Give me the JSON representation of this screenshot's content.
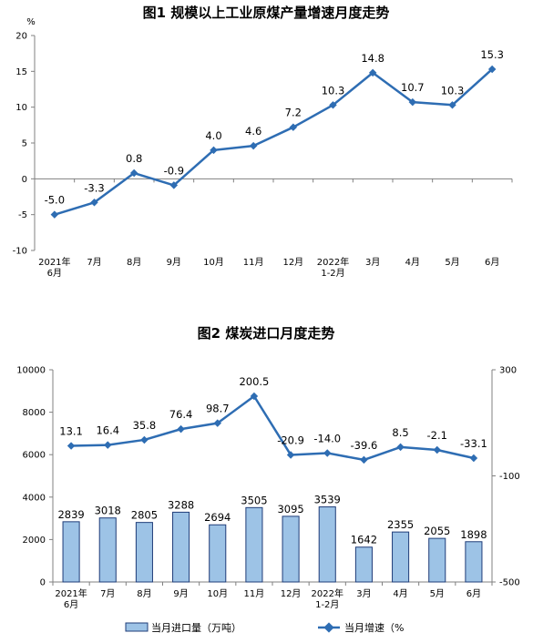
{
  "chart_data": [
    {
      "type": "line",
      "title": "图1  规模以上工业原煤产量增速月度走势",
      "ylabel": "%",
      "ylim": [
        -10,
        20
      ],
      "yticks": [
        "-10",
        "-5",
        "0",
        "5",
        "10",
        "15",
        "20"
      ],
      "categories": [
        "2021年\n6月",
        "7月",
        "8月",
        "9月",
        "10月",
        "11月",
        "12月",
        "2022年\n1-2月",
        "3月",
        "4月",
        "5月",
        "6月"
      ],
      "series": [
        {
          "name": "",
          "values": [
            -5.0,
            -3.3,
            0.8,
            -0.9,
            4.0,
            4.6,
            7.2,
            10.3,
            14.8,
            10.7,
            10.3,
            15.3
          ],
          "labels": [
            "-5.0",
            "-3.3",
            "0.8",
            "-0.9",
            "4.0",
            "4.6",
            "7.2",
            "10.3",
            "14.8",
            "10.7",
            "10.3",
            "15.3"
          ]
        }
      ],
      "grid": false,
      "line_color": "#2e6db3"
    },
    {
      "type": "bar",
      "title": "图2  煤炭进口月度走势",
      "ylim": [
        0,
        10000
      ],
      "yticks": [
        "0",
        "2000",
        "4000",
        "6000",
        "8000",
        "10000"
      ],
      "y2lim": [
        -500,
        300
      ],
      "y2ticks": [
        "-500",
        "-100",
        "300"
      ],
      "categories": [
        "2021年\n6月",
        "7月",
        "8月",
        "9月",
        "10月",
        "11月",
        "12月",
        "2022年\n1-2月",
        "3月",
        "4月",
        "5月",
        "6月"
      ],
      "series": [
        {
          "name": "当月进口量（万吨）",
          "type": "bar",
          "axis": "left",
          "values": [
            2839,
            3018,
            2805,
            3288,
            2694,
            3505,
            3095,
            3539,
            1642,
            2355,
            2055,
            1898
          ],
          "labels": [
            "2839",
            "3018",
            "2805",
            "3288",
            "2694",
            "3505",
            "3095",
            "3539",
            "1642",
            "2355",
            "2055",
            "1898"
          ]
        },
        {
          "name": "当月增速（%",
          "type": "line",
          "axis": "right",
          "values": [
            13.1,
            16.4,
            35.8,
            76.4,
            98.7,
            200.5,
            -20.9,
            -14.0,
            -39.6,
            8.5,
            -2.1,
            -33.1
          ],
          "labels": [
            "13.1",
            "16.4",
            "35.8",
            "76.4",
            "98.7",
            "200.5",
            "-20.9",
            "-14.0",
            "-39.6",
            "8.5",
            "-2.1",
            "-33.1"
          ]
        }
      ],
      "legend": "bottom",
      "grid": false,
      "bar_fill": "#9dc3e6",
      "bar_stroke": "#1f3c78",
      "line_color": "#2e6db3"
    }
  ]
}
